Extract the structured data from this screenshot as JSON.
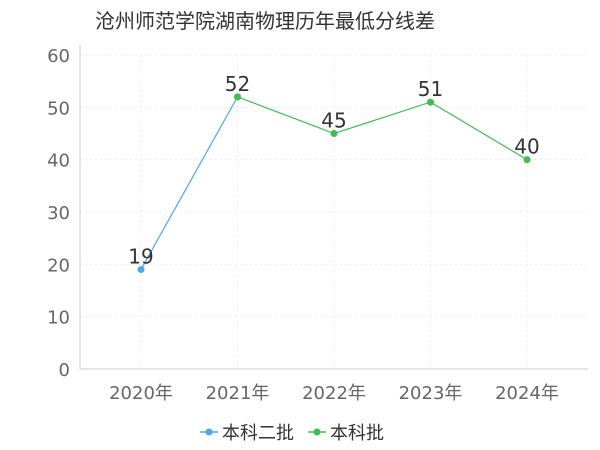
{
  "chart_data": {
    "type": "line",
    "title": "沧州师范学院湖南物理历年最低分线差",
    "categories": [
      "2020年",
      "2021年",
      "2022年",
      "2023年",
      "2024年"
    ],
    "ylim": [
      0,
      60
    ],
    "yticks": [
      0,
      10,
      20,
      30,
      40,
      50,
      60
    ],
    "grid": true,
    "legend_position": "bottom",
    "series": [
      {
        "name": "本科二批",
        "color": "#4da6f0",
        "values": [
          19,
          52,
          null,
          null,
          null
        ]
      },
      {
        "name": "本科批",
        "color": "#3cbf4e",
        "values": [
          null,
          52,
          45,
          51,
          40
        ]
      }
    ],
    "data_labels": [
      {
        "category": "2020年",
        "value": 19
      },
      {
        "category": "2021年",
        "value": 52
      },
      {
        "category": "2022年",
        "value": 45
      },
      {
        "category": "2023年",
        "value": 51
      },
      {
        "category": "2024年",
        "value": 40
      }
    ]
  }
}
